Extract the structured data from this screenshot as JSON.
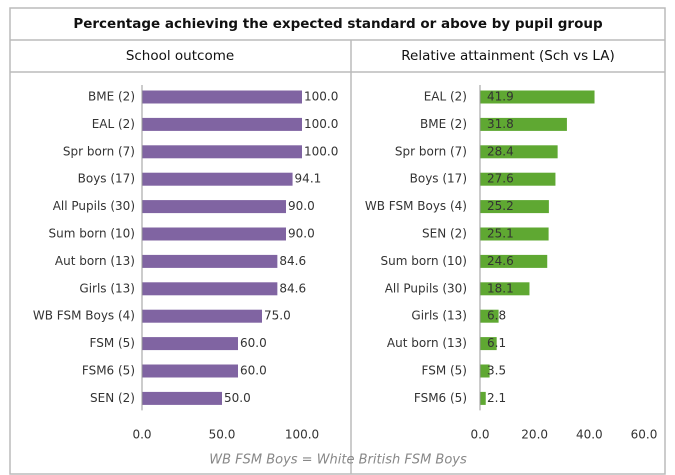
{
  "title": "Percentage achieving the expected standard or above by pupil group",
  "note": "WB FSM Boys = White British FSM Boys",
  "chart_data": [
    {
      "type": "bar",
      "title": "School outcome",
      "categories": [
        "BME (2)",
        "EAL (2)",
        "Spr born (7)",
        "Boys (17)",
        "All Pupils (30)",
        "Sum born (10)",
        "Aut born (13)",
        "Girls (13)",
        "WB FSM Boys (4)",
        "FSM (5)",
        "FSM6 (5)",
        "SEN (2)"
      ],
      "values": [
        100,
        100,
        100,
        94.1,
        90,
        90,
        84.6,
        84.6,
        75,
        60,
        60,
        50
      ],
      "value_labels": [
        "100.0",
        "100.0",
        "100.0",
        "94.1",
        "90.0",
        "90.0",
        "84.6",
        "84.6",
        "75.0",
        "60.0",
        "60.0",
        "50.0"
      ],
      "color": "#8064a2",
      "label_position": "outside",
      "xlim": [
        0,
        100
      ],
      "xticks": [
        {
          "value": 0,
          "label": "0.0"
        },
        {
          "value": 50,
          "label": "50.0"
        },
        {
          "value": 100,
          "label": "100.0"
        }
      ]
    },
    {
      "type": "bar",
      "title": "Relative attainment (Sch vs LA)",
      "categories": [
        "EAL (2)",
        "BME (2)",
        "Spr born (7)",
        "Boys (17)",
        "WB FSM Boys (4)",
        "SEN (2)",
        "Sum born (10)",
        "All Pupils (30)",
        "Girls (13)",
        "Aut born (13)",
        "FSM (5)",
        "FSM6 (5)"
      ],
      "values": [
        41.9,
        31.8,
        28.4,
        27.6,
        25.2,
        25.1,
        24.6,
        18.1,
        6.8,
        6.1,
        3.5,
        2.1
      ],
      "color": "#5fa832",
      "label_position": "inside",
      "xlim": [
        0,
        60
      ],
      "xticks": [
        {
          "value": 0,
          "label": "0.0"
        },
        {
          "value": 20,
          "label": "20.0"
        },
        {
          "value": 40,
          "label": "40.0"
        },
        {
          "value": 60,
          "label": "60.0"
        }
      ]
    }
  ]
}
